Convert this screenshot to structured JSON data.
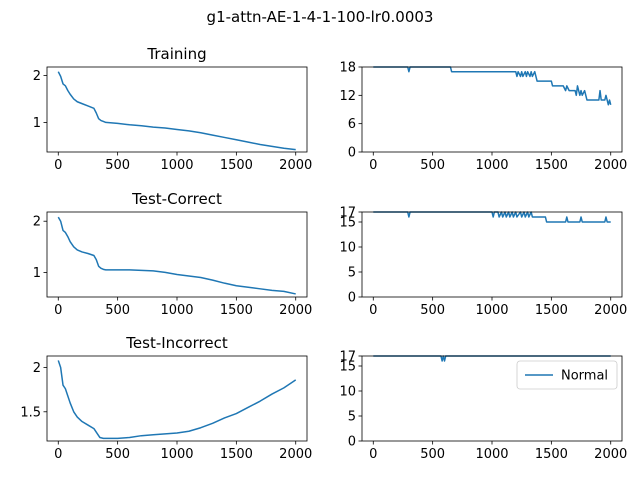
{
  "figure": {
    "suptitle": "g1-attn-AE-1-4-1-100-lr0.0003",
    "line_color": "#1f77b4"
  },
  "chart_data": [
    {
      "type": "line",
      "title": "Training",
      "xlim": [
        -95,
        2095
      ],
      "ylim": [
        0.37,
        2.18
      ],
      "xticks": [
        0,
        500,
        1000,
        1500,
        2000
      ],
      "yticks": [
        1,
        2
      ],
      "series": [
        {
          "x": [
            0,
            20,
            40,
            60,
            80,
            100,
            130,
            160,
            200,
            250,
            300,
            320,
            340,
            360,
            380,
            400,
            500,
            600,
            700,
            800,
            900,
            1000,
            1100,
            1200,
            1300,
            1400,
            1500,
            1600,
            1700,
            1800,
            1900,
            2000
          ],
          "values": [
            2.08,
            1.98,
            1.82,
            1.78,
            1.68,
            1.6,
            1.5,
            1.44,
            1.4,
            1.35,
            1.3,
            1.2,
            1.08,
            1.04,
            1.02,
            1.0,
            0.98,
            0.95,
            0.93,
            0.9,
            0.88,
            0.85,
            0.82,
            0.78,
            0.73,
            0.68,
            0.63,
            0.58,
            0.53,
            0.49,
            0.45,
            0.42
          ]
        }
      ]
    },
    {
      "type": "line",
      "title": "",
      "xlim": [
        -95,
        2095
      ],
      "ylim": [
        0,
        18
      ],
      "xticks": [
        0,
        500,
        1000,
        1500,
        2000
      ],
      "yticks": [
        0,
        6,
        12,
        18
      ],
      "series": [
        {
          "x": [
            0,
            290,
            300,
            310,
            320,
            650,
            660,
            1200,
            1210,
            1220,
            1240,
            1250,
            1260,
            1280,
            1290,
            1300,
            1320,
            1330,
            1340,
            1360,
            1370,
            1380,
            1400,
            1500,
            1510,
            1600,
            1620,
            1630,
            1650,
            1700,
            1710,
            1720,
            1740,
            1750,
            1760,
            1780,
            1800,
            1900,
            1910,
            1920,
            1950,
            1960,
            1980,
            1990,
            2000
          ],
          "values": [
            18,
            18,
            17,
            18,
            18,
            18,
            17,
            17,
            16,
            17,
            16,
            17,
            16,
            17,
            16,
            17,
            16,
            17,
            16,
            17,
            16,
            15,
            15,
            15,
            14,
            14,
            13,
            14,
            13,
            13,
            12,
            14,
            12,
            13,
            12,
            13,
            11,
            11,
            13,
            11,
            11,
            12,
            10,
            11,
            10
          ]
        }
      ]
    },
    {
      "type": "line",
      "title": "Test-Correct",
      "xlim": [
        -95,
        2095
      ],
      "ylim": [
        0.52,
        2.18
      ],
      "xticks": [
        0,
        500,
        1000,
        1500,
        2000
      ],
      "yticks": [
        1,
        2
      ],
      "series": [
        {
          "x": [
            0,
            20,
            40,
            60,
            80,
            100,
            130,
            160,
            200,
            250,
            300,
            320,
            340,
            360,
            380,
            400,
            500,
            600,
            700,
            800,
            900,
            1000,
            1100,
            1200,
            1300,
            1400,
            1500,
            1600,
            1700,
            1800,
            1900,
            2000
          ],
          "values": [
            2.08,
            2.0,
            1.82,
            1.78,
            1.7,
            1.6,
            1.5,
            1.44,
            1.4,
            1.37,
            1.33,
            1.25,
            1.12,
            1.08,
            1.06,
            1.05,
            1.05,
            1.05,
            1.04,
            1.03,
            1.0,
            0.96,
            0.93,
            0.9,
            0.85,
            0.79,
            0.74,
            0.71,
            0.68,
            0.65,
            0.63,
            0.58
          ]
        }
      ]
    },
    {
      "type": "line",
      "title": "",
      "xlim": [
        -95,
        2095
      ],
      "ylim": [
        0,
        17
      ],
      "xticks": [
        0,
        500,
        1000,
        1500,
        2000
      ],
      "yticks": [
        0,
        5,
        10,
        15,
        17
      ],
      "series": [
        {
          "x": [
            0,
            290,
            300,
            310,
            1000,
            1010,
            1020,
            1050,
            1060,
            1080,
            1090,
            1110,
            1120,
            1140,
            1150,
            1170,
            1180,
            1200,
            1210,
            1240,
            1250,
            1270,
            1280,
            1300,
            1310,
            1330,
            1340,
            1400,
            1450,
            1460,
            1620,
            1630,
            1640,
            1740,
            1750,
            1760,
            1950,
            1960,
            1970,
            2000
          ],
          "values": [
            17,
            17,
            16,
            17,
            17,
            16,
            17,
            17,
            16,
            17,
            16,
            17,
            16,
            17,
            16,
            17,
            16,
            17,
            16,
            17,
            16,
            17,
            16,
            17,
            16,
            17,
            16,
            16,
            16,
            15,
            15,
            16,
            15,
            15,
            16,
            15,
            15,
            16,
            15,
            15
          ]
        }
      ]
    },
    {
      "type": "line",
      "title": "Test-Incorrect",
      "xlim": [
        -95,
        2095
      ],
      "ylim": [
        1.17,
        2.13
      ],
      "xticks": [
        0,
        500,
        1000,
        1500,
        2000
      ],
      "yticks": [
        1.5,
        2.0
      ],
      "series": [
        {
          "x": [
            0,
            20,
            40,
            60,
            80,
            100,
            130,
            160,
            200,
            250,
            300,
            330,
            350,
            380,
            400,
            500,
            600,
            700,
            800,
            900,
            1000,
            1100,
            1200,
            1300,
            1400,
            1500,
            1600,
            1700,
            1800,
            1900,
            2000
          ],
          "values": [
            2.08,
            2.0,
            1.8,
            1.76,
            1.68,
            1.6,
            1.5,
            1.44,
            1.39,
            1.35,
            1.31,
            1.25,
            1.21,
            1.2,
            1.2,
            1.2,
            1.21,
            1.23,
            1.24,
            1.25,
            1.26,
            1.28,
            1.32,
            1.37,
            1.43,
            1.48,
            1.55,
            1.62,
            1.7,
            1.77,
            1.86
          ]
        }
      ]
    },
    {
      "type": "line",
      "title": "",
      "xlim": [
        -95,
        2095
      ],
      "ylim": [
        0,
        17
      ],
      "xticks": [
        0,
        500,
        1000,
        1500,
        2000
      ],
      "yticks": [
        0,
        5,
        10,
        15,
        17
      ],
      "legend": {
        "label": "Normal",
        "position": "upper right"
      },
      "series": [
        {
          "name": "Normal",
          "x": [
            0,
            570,
            580,
            590,
            600,
            610,
            620,
            2000
          ],
          "values": [
            17,
            17,
            16,
            17,
            16,
            17,
            17,
            17
          ]
        }
      ]
    }
  ]
}
